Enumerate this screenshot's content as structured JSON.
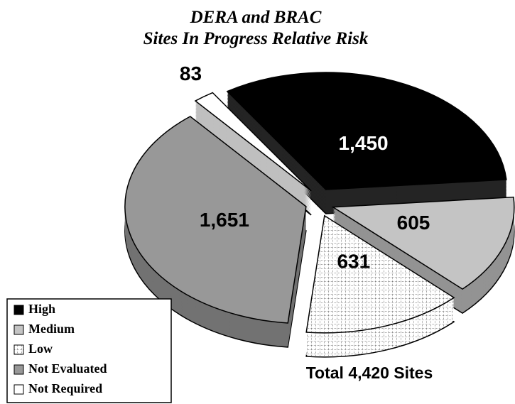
{
  "chart_data": {
    "type": "pie",
    "title": "DERA and BRAC",
    "subtitle": "Sites In Progress Relative Risk",
    "categories": [
      "High",
      "Medium",
      "Low",
      "Not Evaluated",
      "Not Required"
    ],
    "values": [
      1450,
      605,
      631,
      1651,
      83
    ],
    "value_labels": [
      "1,450",
      "605",
      "631",
      "1,651",
      "83"
    ],
    "colors": [
      "#000000",
      "#c4c4c4",
      "#ffffff",
      "#989898",
      "#ffffff"
    ],
    "annotation": "Total 4,420 Sites",
    "legend": "bottom-left"
  }
}
